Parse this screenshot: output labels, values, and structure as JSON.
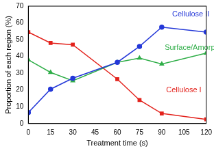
{
  "chart_data": {
    "type": "line",
    "x_label": "Treatment time (s)",
    "y_label": "Proportion of each region (%)",
    "x": [
      0,
      15,
      30,
      60,
      75,
      90,
      120
    ],
    "series": [
      {
        "name": "Cellulose II",
        "color": "#2438d8",
        "marker": "circle",
        "values": [
          6.5,
          20.5,
          27,
          36.5,
          46,
          57.5,
          54.5
        ]
      },
      {
        "name": "Surface/Amorphous",
        "color": "#2fae48",
        "marker": "triangle",
        "values": [
          38,
          30.5,
          25.5,
          36.5,
          39,
          35.5,
          42
        ]
      },
      {
        "name": "Cellulose I",
        "color": "#e3221c",
        "marker": "square",
        "values": [
          54.5,
          48,
          47,
          26.5,
          14,
          6,
          2.5
        ]
      }
    ],
    "xlim": [
      0,
      120
    ],
    "xticks": [
      0,
      15,
      30,
      45,
      60,
      75,
      90,
      105,
      120
    ],
    "ylim": [
      0,
      70
    ],
    "yticks": [
      0,
      10,
      20,
      30,
      40,
      50,
      60,
      70
    ],
    "grid": false
  }
}
